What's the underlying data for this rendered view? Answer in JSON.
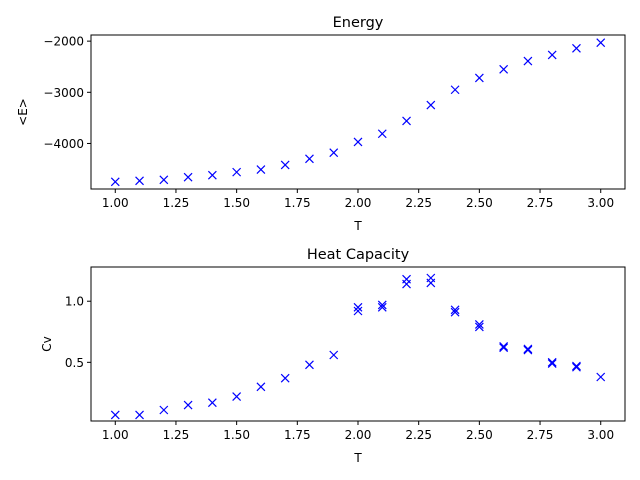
{
  "chart_data": [
    {
      "type": "scatter",
      "title": "Energy",
      "xlabel": "T",
      "ylabel": "<E>",
      "marker": "x",
      "color": "#0000ff",
      "xlim": [
        0.9,
        3.1
      ],
      "ylim": [
        -4890,
        -1880
      ],
      "x_ticks": [
        1.0,
        1.25,
        1.5,
        1.75,
        2.0,
        2.25,
        2.5,
        2.75,
        3.0
      ],
      "x_tick_labels": [
        "1.00",
        "1.25",
        "1.50",
        "1.75",
        "2.00",
        "2.25",
        "2.50",
        "2.75",
        "3.00"
      ],
      "y_ticks": [
        -4000,
        -3000,
        -2000
      ],
      "y_tick_labels": [
        "−4000",
        "−3000",
        "−2000"
      ],
      "series": [
        {
          "x": [
            1.0,
            1.1,
            1.2,
            1.3,
            1.4,
            1.5,
            1.6,
            1.7,
            1.8,
            1.9,
            2.0,
            2.1,
            2.2,
            2.3,
            2.4,
            2.5,
            2.6,
            2.7,
            2.8,
            2.9,
            3.0
          ],
          "y": [
            -4750,
            -4730,
            -4710,
            -4660,
            -4620,
            -4560,
            -4510,
            -4420,
            -4300,
            -4180,
            -3970,
            -3810,
            -3560,
            -3250,
            -2950,
            -2720,
            -2550,
            -2390,
            -2270,
            -2140,
            -2030
          ]
        }
      ]
    },
    {
      "type": "scatter",
      "title": "Heat Capacity",
      "xlabel": "T",
      "ylabel": "Cv",
      "marker": "x",
      "color": "#0000ff",
      "xlim": [
        0.9,
        3.1
      ],
      "ylim": [
        0.02,
        1.28
      ],
      "x_ticks": [
        1.0,
        1.25,
        1.5,
        1.75,
        2.0,
        2.25,
        2.5,
        2.75,
        3.0
      ],
      "x_tick_labels": [
        "1.00",
        "1.25",
        "1.50",
        "1.75",
        "2.00",
        "2.25",
        "2.50",
        "2.75",
        "3.00"
      ],
      "y_ticks": [
        0.5,
        1.0
      ],
      "y_tick_labels": [
        "0.5",
        "1.0"
      ],
      "series": [
        {
          "x": [
            1.0,
            1.1,
            1.2,
            1.3,
            1.4,
            1.5,
            1.6,
            1.7,
            1.8,
            1.9,
            2.0,
            2.0,
            2.1,
            2.1,
            2.2,
            2.2,
            2.3,
            2.3,
            2.4,
            2.4,
            2.5,
            2.5,
            2.6,
            2.6,
            2.7,
            2.7,
            2.8,
            2.8,
            2.9,
            2.9,
            3.0
          ],
          "y": [
            0.07,
            0.07,
            0.11,
            0.15,
            0.17,
            0.22,
            0.3,
            0.37,
            0.48,
            0.56,
            0.95,
            0.92,
            0.97,
            0.95,
            1.18,
            1.14,
            1.19,
            1.15,
            0.93,
            0.91,
            0.81,
            0.79,
            0.63,
            0.62,
            0.61,
            0.6,
            0.5,
            0.49,
            0.47,
            0.46,
            0.38
          ]
        }
      ]
    }
  ]
}
